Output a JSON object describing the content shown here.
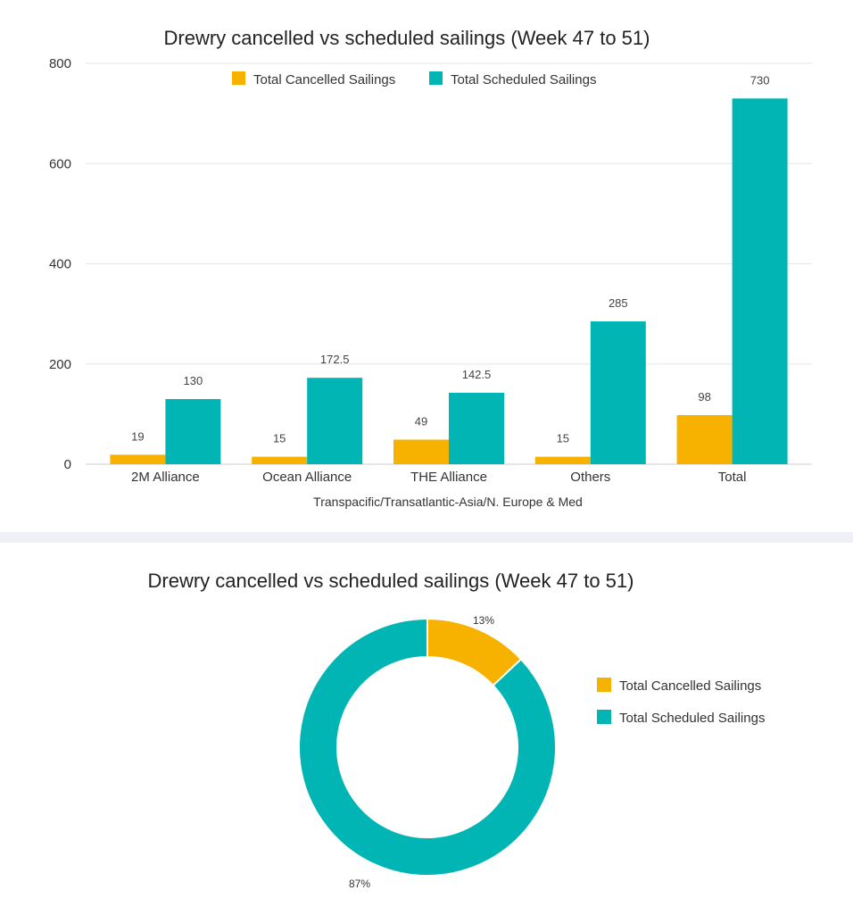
{
  "colors": {
    "cancelled": "#F7B200",
    "scheduled": "#00B5B3",
    "grid": "#e6e6e6"
  },
  "chart_data": [
    {
      "type": "bar",
      "title": "Drewry cancelled vs scheduled sailings (Week 47 to 51)",
      "xlabel": "Transpacific/Transatlantic-Asia/N. Europe & Med",
      "ylabel": "",
      "ylim": [
        0,
        800
      ],
      "yticks": [
        "0",
        "200",
        "400",
        "600",
        "800"
      ],
      "categories": [
        "2M Alliance",
        "Ocean Alliance",
        "THE Alliance",
        "Others",
        "Total"
      ],
      "series": [
        {
          "name": "Total Cancelled Sailings",
          "values": [
            19,
            15,
            49,
            15,
            98
          ],
          "labels": [
            "19",
            "15",
            "49",
            "15",
            "98"
          ]
        },
        {
          "name": "Total Scheduled Sailings",
          "values": [
            130,
            172.5,
            142.5,
            285,
            730
          ],
          "labels": [
            "130",
            "172.5",
            "142.5",
            "285",
            "730"
          ]
        }
      ],
      "grid": true,
      "legend": "top"
    },
    {
      "type": "pie",
      "title": "Drewry cancelled vs scheduled sailings (Week 47 to 51)",
      "donut": true,
      "slices": [
        {
          "name": "Total Cancelled Sailings",
          "value": 13,
          "label": "13%"
        },
        {
          "name": "Total Scheduled Sailings",
          "value": 87,
          "label": "87%"
        }
      ],
      "legend": "right"
    }
  ]
}
